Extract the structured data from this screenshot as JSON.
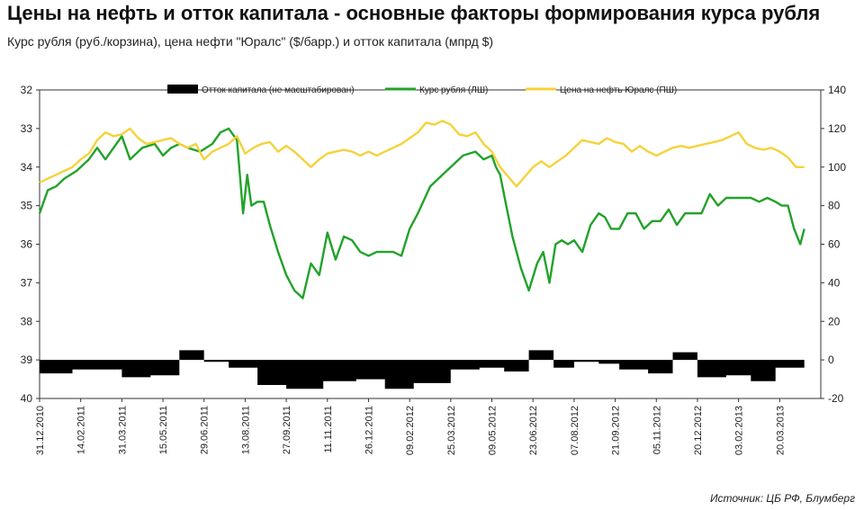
{
  "title": "Цены на нефть и отток капитала - основные факторы формирования курса рубля",
  "subtitle": "Курс рубля (руб./корзина), цена нефти \"Юралс\" ($/барр.) и отток капитала (мпрд $)",
  "source": "Источник: ЦБ РФ, Блумберг",
  "chart_data": {
    "type": "line",
    "x_labels": [
      "31.12.2010",
      "14.02.2011",
      "31.03.2011",
      "15.05.2011",
      "29.06.2011",
      "13.08.2011",
      "27.09.2011",
      "11.11.2011",
      "26.12.2011",
      "09.02.2012",
      "25.03.2012",
      "09.05.2012",
      "23.06.2012",
      "07.08.2012",
      "21.09.2012",
      "05.11.2012",
      "20.12.2012",
      "03.02.2013",
      "20.03.2013"
    ],
    "y_left": {
      "min": 32,
      "max": 40,
      "inverted": true,
      "ticks": [
        32,
        33,
        34,
        35,
        36,
        37,
        38,
        39,
        40
      ]
    },
    "y_right": {
      "min": -20,
      "max": 140,
      "ticks": [
        140,
        120,
        100,
        80,
        60,
        40,
        20,
        0,
        -20
      ]
    },
    "legend_position": "top",
    "series": [
      {
        "name": "Отток капитала (не масштабирован)",
        "type": "area",
        "axis": "right",
        "color": "#000000",
        "t": [
          0,
          0.8,
          0.8,
          2.0,
          2.0,
          2.7,
          2.7,
          3.4,
          3.4,
          4.0,
          4.0,
          4.6,
          4.6,
          5.3,
          5.3,
          6.0,
          6.0,
          6.9,
          6.9,
          7.7,
          7.7,
          8.4,
          8.4,
          9.1,
          9.1,
          10.0,
          10.0,
          10.7,
          10.7,
          11.3,
          11.3,
          11.9,
          11.9,
          12.5,
          12.5,
          13.0,
          13.0,
          13.6,
          13.6,
          14.1,
          14.1,
          14.8,
          14.8,
          15.4,
          15.4,
          16.0,
          16.0,
          16.7,
          16.7,
          17.3,
          17.3,
          17.9,
          17.9,
          18.6
        ],
        "values": [
          -7,
          -7,
          -5,
          -5,
          -9,
          -9,
          -8,
          -8,
          5,
          5,
          -1,
          -1,
          -4,
          -4,
          -13,
          -13,
          -15,
          -15,
          -11,
          -11,
          -10,
          -10,
          -15,
          -15,
          -12,
          -12,
          -5,
          -5,
          -4,
          -4,
          -6,
          -6,
          5,
          5,
          -4,
          -4,
          -1,
          -1,
          -2,
          -2,
          -5,
          -5,
          -7,
          -7,
          4,
          4,
          -9,
          -9,
          -8,
          -8,
          -11,
          -11,
          -4,
          -4
        ]
      },
      {
        "name": "Курс рубля (ЛШ)",
        "type": "line",
        "axis": "left",
        "color": "#22a22a",
        "t": [
          0.0,
          0.2,
          0.4,
          0.6,
          0.9,
          1.2,
          1.4,
          1.6,
          1.8,
          2.0,
          2.2,
          2.5,
          2.8,
          3.0,
          3.2,
          3.4,
          3.6,
          3.9,
          4.2,
          4.4,
          4.6,
          4.8,
          4.95,
          5.05,
          5.15,
          5.3,
          5.45,
          5.6,
          5.8,
          6.0,
          6.2,
          6.4,
          6.6,
          6.8,
          7.0,
          7.2,
          7.4,
          7.6,
          7.8,
          8.0,
          8.2,
          8.4,
          8.6,
          8.8,
          9.0,
          9.2,
          9.5,
          9.8,
          10.0,
          10.3,
          10.6,
          10.8,
          11.0,
          11.1,
          11.2,
          11.35,
          11.5,
          11.7,
          11.9,
          12.1,
          12.25,
          12.4,
          12.55,
          12.7,
          12.85,
          13.0,
          13.2,
          13.4,
          13.6,
          13.75,
          13.9,
          14.1,
          14.3,
          14.5,
          14.7,
          14.9,
          15.1,
          15.3,
          15.5,
          15.7,
          15.9,
          16.1,
          16.3,
          16.5,
          16.7,
          16.9,
          17.1,
          17.3,
          17.5,
          17.7,
          17.9,
          18.05,
          18.2,
          18.35,
          18.5,
          18.6
        ],
        "values": [
          35.2,
          34.6,
          34.5,
          34.3,
          34.1,
          33.8,
          33.5,
          33.8,
          33.5,
          33.2,
          33.8,
          33.5,
          33.4,
          33.7,
          33.5,
          33.4,
          33.5,
          33.6,
          33.4,
          33.1,
          33.0,
          33.3,
          35.2,
          34.2,
          35.0,
          34.9,
          34.9,
          35.5,
          36.2,
          36.8,
          37.2,
          37.4,
          36.5,
          36.8,
          35.7,
          36.4,
          35.8,
          35.9,
          36.2,
          36.3,
          36.2,
          36.2,
          36.2,
          36.3,
          35.6,
          35.2,
          34.5,
          34.2,
          34.0,
          33.7,
          33.6,
          33.8,
          33.7,
          34.0,
          34.2,
          35.0,
          35.8,
          36.6,
          37.2,
          36.5,
          36.2,
          37.0,
          36.0,
          35.9,
          36.0,
          35.9,
          36.2,
          35.5,
          35.2,
          35.3,
          35.6,
          35.6,
          35.2,
          35.2,
          35.6,
          35.4,
          35.4,
          35.1,
          35.5,
          35.2,
          35.2,
          35.2,
          34.7,
          35.0,
          34.8,
          34.8,
          34.8,
          34.8,
          34.9,
          34.8,
          34.9,
          35.0,
          35.0,
          35.6,
          36.0,
          35.6
        ]
      },
      {
        "name": "Цена на нефть Юралс (ПШ)",
        "type": "line",
        "axis": "right",
        "color": "#f5d23a",
        "t": [
          0.0,
          0.2,
          0.4,
          0.6,
          0.8,
          1.0,
          1.2,
          1.4,
          1.6,
          1.8,
          2.0,
          2.2,
          2.4,
          2.6,
          2.8,
          3.0,
          3.2,
          3.4,
          3.6,
          3.8,
          4.0,
          4.2,
          4.4,
          4.6,
          4.8,
          5.0,
          5.2,
          5.4,
          5.6,
          5.8,
          6.0,
          6.2,
          6.4,
          6.6,
          6.8,
          7.0,
          7.2,
          7.4,
          7.6,
          7.8,
          8.0,
          8.2,
          8.4,
          8.6,
          8.8,
          9.0,
          9.2,
          9.4,
          9.6,
          9.8,
          10.0,
          10.2,
          10.4,
          10.6,
          10.8,
          11.0,
          11.2,
          11.4,
          11.6,
          11.8,
          12.0,
          12.2,
          12.4,
          12.6,
          12.8,
          13.0,
          13.2,
          13.4,
          13.6,
          13.8,
          14.0,
          14.2,
          14.4,
          14.6,
          14.8,
          15.0,
          15.2,
          15.4,
          15.6,
          15.8,
          16.0,
          16.2,
          16.4,
          16.6,
          16.8,
          17.0,
          17.2,
          17.4,
          17.6,
          17.8,
          18.0,
          18.2,
          18.4,
          18.6
        ],
        "values": [
          92,
          94,
          96,
          98,
          100,
          104,
          107,
          114,
          118,
          116,
          117,
          120,
          115,
          112,
          113,
          114,
          115,
          112,
          110,
          112,
          104,
          108,
          110,
          112,
          116,
          107,
          110,
          112,
          113,
          108,
          111,
          108,
          104,
          100,
          104,
          107,
          108,
          109,
          108,
          106,
          108,
          106,
          108,
          110,
          112,
          115,
          118,
          123,
          122,
          124,
          122,
          117,
          116,
          118,
          112,
          108,
          100,
          95,
          90,
          95,
          100,
          103,
          100,
          103,
          106,
          110,
          114,
          113,
          112,
          115,
          113,
          112,
          108,
          111,
          108,
          106,
          108,
          110,
          111,
          110,
          111,
          112,
          113,
          114,
          116,
          118,
          112,
          110,
          109,
          110,
          108,
          105,
          100,
          100
        ]
      }
    ]
  }
}
